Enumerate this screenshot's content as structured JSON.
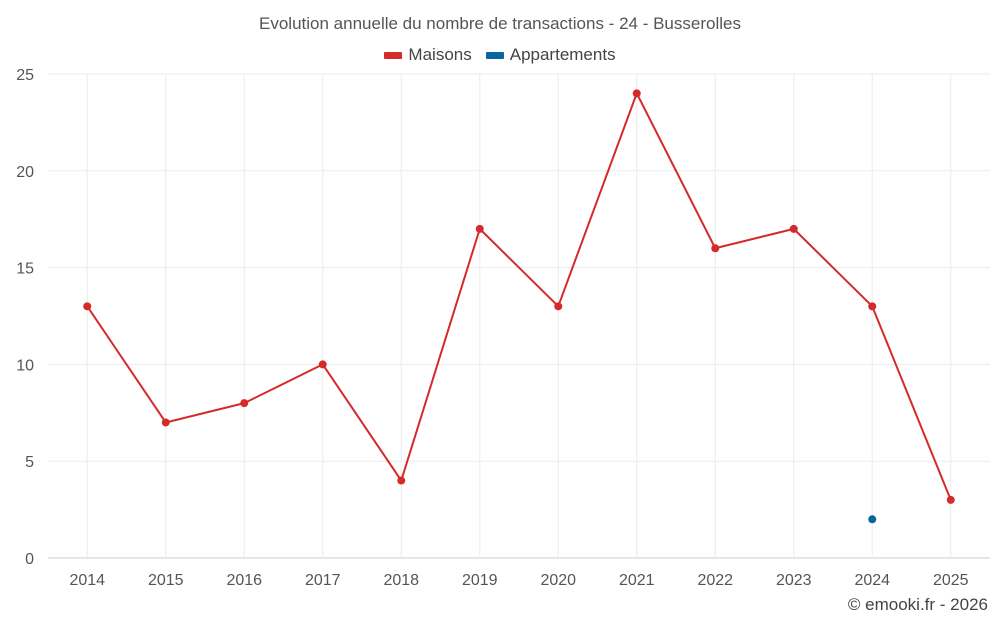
{
  "chart_data": {
    "type": "line",
    "title": "Evolution annuelle du nombre de transactions - 24 - Busserolles",
    "xlabel": "",
    "ylabel": "",
    "categories": [
      "2014",
      "2015",
      "2016",
      "2017",
      "2018",
      "2019",
      "2020",
      "2021",
      "2022",
      "2023",
      "2024",
      "2025"
    ],
    "ylim": [
      0,
      25
    ],
    "yticks": [
      0,
      5,
      10,
      15,
      20,
      25
    ],
    "grid": true,
    "legend_position": "top-center",
    "series": [
      {
        "name": "Maisons",
        "color": "#d42a2a",
        "values": [
          13,
          7,
          8,
          10,
          4,
          17,
          13,
          24,
          16,
          17,
          13,
          3
        ]
      },
      {
        "name": "Appartements",
        "color": "#0b64a0",
        "values": [
          null,
          null,
          null,
          null,
          null,
          null,
          null,
          null,
          null,
          null,
          2,
          null
        ]
      }
    ]
  },
  "credit": "© emooki.fr - 2026"
}
